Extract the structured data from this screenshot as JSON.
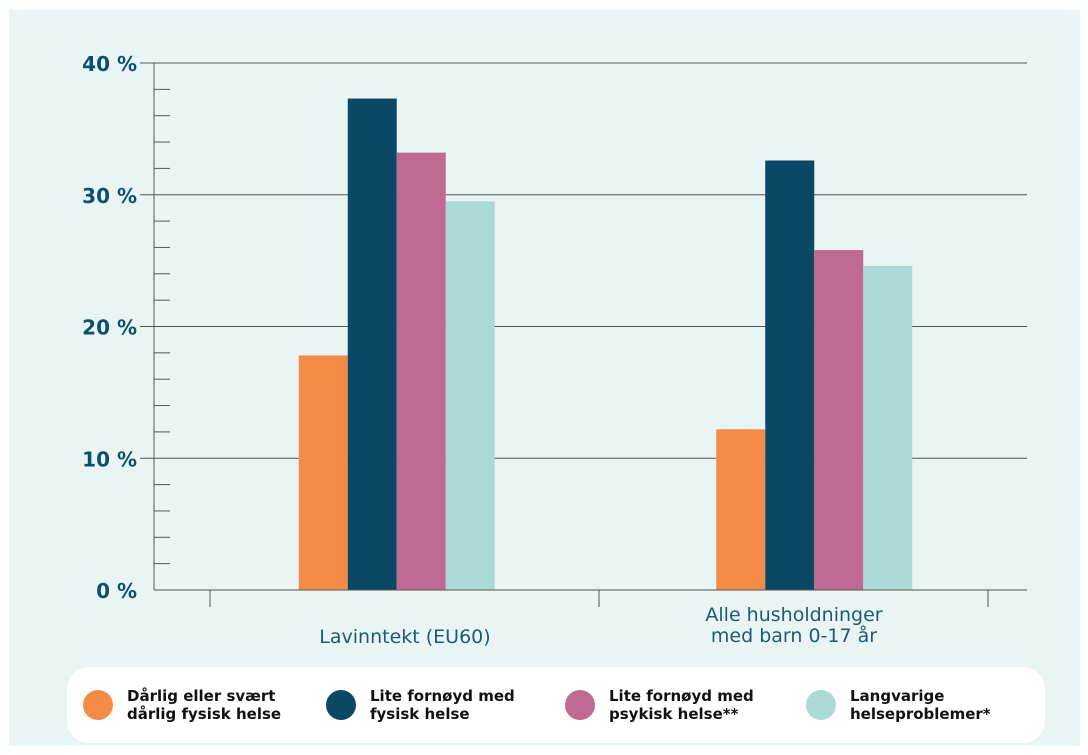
{
  "colors": {
    "panel_bg": "#e9f5f5",
    "axis_text": "#0e4f6b",
    "category_text": "#1e5a74",
    "grid": "#555555"
  },
  "chart_data": {
    "type": "bar",
    "categories": [
      "Lavinntekt (EU60)",
      "Alle husholdninger\nmed barn 0-17 år"
    ],
    "series": [
      {
        "name": "Dårlig eller svært\ndårlig fysisk helse",
        "color": "#f48c48",
        "values": [
          17.8,
          12.2
        ]
      },
      {
        "name": "Lite fornøyd med\nfysisk helse",
        "color": "#0b4866",
        "values": [
          37.3,
          32.6
        ]
      },
      {
        "name": "Lite fornøyd med\npsykisk helse**",
        "color": "#c16a91",
        "values": [
          33.2,
          25.8
        ]
      },
      {
        "name": "Langvarige\nhelseproblemer*",
        "color": "#abd9d6",
        "values": [
          29.5,
          24.6
        ]
      }
    ],
    "ylim": [
      0,
      40
    ],
    "yticks": [
      0,
      10,
      20,
      30,
      40
    ],
    "ytick_labels": [
      "0 %",
      "10 %",
      "20 %",
      "30 %",
      "40 %"
    ],
    "grid": true,
    "legend_position": "bottom"
  }
}
